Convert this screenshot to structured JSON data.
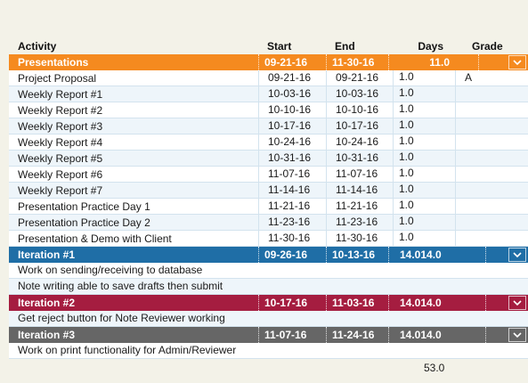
{
  "columns": {
    "activity": "Activity",
    "start": "Start",
    "end": "End",
    "days": "Days",
    "grade": "Grade"
  },
  "presentations": {
    "name": "Presentations",
    "start": "09-21-16",
    "end": "11-30-16",
    "days": "11.0",
    "color": "#f58a1f",
    "rows": [
      {
        "activity": "Project Proposal",
        "start": "09-21-16",
        "end": "09-21-16",
        "days": "1.0",
        "grade": "A"
      },
      {
        "activity": "Weekly Report #1",
        "start": "10-03-16",
        "end": "10-03-16",
        "days": "1.0",
        "grade": ""
      },
      {
        "activity": "Weekly Report #2",
        "start": "10-10-16",
        "end": "10-10-16",
        "days": "1.0",
        "grade": ""
      },
      {
        "activity": "Weekly Report #3",
        "start": "10-17-16",
        "end": "10-17-16",
        "days": "1.0",
        "grade": ""
      },
      {
        "activity": "Weekly Report #4",
        "start": "10-24-16",
        "end": "10-24-16",
        "days": "1.0",
        "grade": ""
      },
      {
        "activity": "Weekly Report #5",
        "start": "10-31-16",
        "end": "10-31-16",
        "days": "1.0",
        "grade": ""
      },
      {
        "activity": "Weekly Report #6",
        "start": "11-07-16",
        "end": "11-07-16",
        "days": "1.0",
        "grade": ""
      },
      {
        "activity": "Weekly Report #7",
        "start": "11-14-16",
        "end": "11-14-16",
        "days": "1.0",
        "grade": ""
      },
      {
        "activity": "Presentation Practice Day 1",
        "start": "11-21-16",
        "end": "11-21-16",
        "days": "1.0",
        "grade": ""
      },
      {
        "activity": "Presentation Practice Day 2",
        "start": "11-23-16",
        "end": "11-23-16",
        "days": "1.0",
        "grade": ""
      },
      {
        "activity": "Presentation & Demo with Client",
        "start": "11-30-16",
        "end": "11-30-16",
        "days": "1.0",
        "grade": ""
      }
    ]
  },
  "iteration1": {
    "name": "Iteration #1",
    "start": "09-26-16",
    "end": "10-13-16",
    "days": "14.014.0",
    "color": "#1f6ea6",
    "tasks": [
      "Work on sending/receiving to database",
      "Note writing able to save drafts then submit"
    ]
  },
  "iteration2": {
    "name": "Iteration #2",
    "start": "10-17-16",
    "end": "11-03-16",
    "days": "14.014.0",
    "color": "#a51d40",
    "tasks": [
      "Get reject button for Note Reviewer working"
    ]
  },
  "iteration3": {
    "name": "Iteration #3",
    "start": "11-07-16",
    "end": "11-24-16",
    "days": "14.014.0",
    "color": "#666666",
    "tasks": [
      "Work on print functionality for Admin/Reviewer"
    ]
  },
  "total_days": "53.0",
  "icons": {
    "toggle": "chevron-down-icon"
  }
}
